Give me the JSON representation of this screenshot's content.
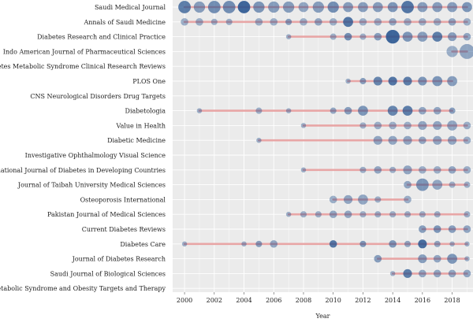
{
  "chart_data": {
    "type": "scatter",
    "xlabel": "Year",
    "x_ticks": [
      2000,
      2002,
      2004,
      2006,
      2008,
      2010,
      2012,
      2014,
      2016,
      2018
    ],
    "xlim": [
      1999.2,
      2019.4
    ],
    "grid": true,
    "colors": {
      "background": "#ebebeb",
      "grid": "#ffffff",
      "range_line": "#e8a6a6",
      "dot_light": "#a9bfd9",
      "dot_dark": "#1f4e8c"
    },
    "journals": [
      {
        "label": "Saudi Medical Journal",
        "range": [
          2000,
          2019
        ],
        "points": [
          [
            2000,
            8,
            0.7
          ],
          [
            2001,
            7,
            0.5
          ],
          [
            2002,
            8,
            0.6
          ],
          [
            2003,
            8,
            0.6
          ],
          [
            2004,
            8,
            0.85
          ],
          [
            2005,
            7,
            0.55
          ],
          [
            2006,
            7,
            0.5
          ],
          [
            2007,
            7,
            0.5
          ],
          [
            2008,
            6,
            0.45
          ],
          [
            2009,
            7,
            0.5
          ],
          [
            2010,
            7,
            0.6
          ],
          [
            2011,
            6,
            0.5
          ],
          [
            2012,
            6,
            0.5
          ],
          [
            2013,
            6,
            0.5
          ],
          [
            2014,
            6,
            0.55
          ],
          [
            2015,
            8,
            0.75
          ],
          [
            2016,
            6,
            0.5
          ],
          [
            2017,
            6,
            0.5
          ],
          [
            2018,
            6,
            0.5
          ],
          [
            2019,
            6,
            0.55
          ]
        ]
      },
      {
        "label": "Annals of Saudi Medicine",
        "range": [
          2000,
          2019
        ],
        "points": [
          [
            2000,
            4,
            0.4
          ],
          [
            2001,
            4,
            0.4
          ],
          [
            2002,
            3,
            0.4
          ],
          [
            2003,
            3,
            0.4
          ],
          [
            2005,
            4,
            0.4
          ],
          [
            2006,
            4,
            0.4
          ],
          [
            2007,
            3,
            0.5
          ],
          [
            2008,
            4,
            0.4
          ],
          [
            2009,
            4,
            0.45
          ],
          [
            2010,
            4,
            0.4
          ],
          [
            2011,
            6,
            0.75
          ],
          [
            2012,
            4,
            0.4
          ],
          [
            2013,
            4,
            0.4
          ],
          [
            2014,
            4,
            0.45
          ],
          [
            2015,
            4,
            0.4
          ],
          [
            2016,
            4,
            0.4
          ],
          [
            2017,
            4,
            0.4
          ],
          [
            2018,
            4,
            0.45
          ],
          [
            2019,
            4,
            0.4
          ]
        ]
      },
      {
        "label": "Diabetes Research and Clinical Practice",
        "range": [
          2007,
          2019
        ],
        "points": [
          [
            2007,
            2,
            0.4
          ],
          [
            2010,
            3,
            0.4
          ],
          [
            2011,
            4,
            0.6
          ],
          [
            2012,
            3,
            0.4
          ],
          [
            2013,
            4,
            0.5
          ],
          [
            2014,
            9,
            0.85
          ],
          [
            2015,
            6,
            0.55
          ],
          [
            2016,
            6,
            0.5
          ],
          [
            2017,
            6,
            0.7
          ],
          [
            2018,
            5,
            0.5
          ],
          [
            2019,
            4,
            0.45
          ]
        ]
      },
      {
        "label": "Indo American Journal of Pharmaceutical Sciences",
        "range": [
          2018,
          2019
        ],
        "points": [
          [
            2018,
            7,
            0.4
          ],
          [
            2019,
            10,
            0.45
          ]
        ]
      },
      {
        "label": "Diabetes Metabolic Syndrome Clinical Research Reviews",
        "range": null,
        "points": []
      },
      {
        "label": "PLOS One",
        "range": [
          2011,
          2018
        ],
        "points": [
          [
            2011,
            2,
            0.4
          ],
          [
            2012,
            3,
            0.5
          ],
          [
            2013,
            5,
            0.65
          ],
          [
            2014,
            5,
            0.75
          ],
          [
            2015,
            5,
            0.7
          ],
          [
            2016,
            5,
            0.55
          ],
          [
            2017,
            6,
            0.55
          ],
          [
            2018,
            6,
            0.5
          ]
        ]
      },
      {
        "label": "CNS Neurological Disorders Drug Targets",
        "range": null,
        "points": []
      },
      {
        "label": "Diabetologia",
        "range": [
          2001,
          2018
        ],
        "points": [
          [
            2001,
            2,
            0.4
          ],
          [
            2005,
            3,
            0.4
          ],
          [
            2007,
            2,
            0.4
          ],
          [
            2010,
            3,
            0.45
          ],
          [
            2011,
            4,
            0.5
          ],
          [
            2012,
            6,
            0.55
          ],
          [
            2014,
            6,
            0.65
          ],
          [
            2015,
            6,
            0.7
          ],
          [
            2016,
            4,
            0.45
          ],
          [
            2017,
            4,
            0.45
          ],
          [
            2018,
            3,
            0.5
          ]
        ]
      },
      {
        "label": "Value in Health",
        "range": [
          2008,
          2019
        ],
        "points": [
          [
            2008,
            2,
            0.4
          ],
          [
            2012,
            3,
            0.4
          ],
          [
            2013,
            4,
            0.4
          ],
          [
            2014,
            4,
            0.4
          ],
          [
            2015,
            4,
            0.4
          ],
          [
            2016,
            5,
            0.45
          ],
          [
            2017,
            5,
            0.45
          ],
          [
            2018,
            6,
            0.45
          ],
          [
            2019,
            4,
            0.4
          ]
        ]
      },
      {
        "label": "Diabetic Medicine",
        "range": [
          2005,
          2019
        ],
        "points": [
          [
            2005,
            2,
            0.4
          ],
          [
            2013,
            5,
            0.45
          ],
          [
            2014,
            5,
            0.45
          ],
          [
            2015,
            5,
            0.45
          ],
          [
            2016,
            4,
            0.45
          ],
          [
            2017,
            5,
            0.45
          ],
          [
            2018,
            5,
            0.45
          ],
          [
            2019,
            4,
            0.4
          ]
        ]
      },
      {
        "label": "Investigative Ophthalmology Visual Science",
        "range": null,
        "points": []
      },
      {
        "label": "International Journal of Diabetes in Developing Countries",
        "range": [
          2008,
          2019
        ],
        "points": [
          [
            2008,
            2,
            0.4
          ],
          [
            2012,
            3,
            0.4
          ],
          [
            2013,
            4,
            0.45
          ],
          [
            2014,
            3,
            0.4
          ],
          [
            2015,
            5,
            0.45
          ],
          [
            2016,
            4,
            0.4
          ],
          [
            2017,
            4,
            0.4
          ],
          [
            2018,
            4,
            0.45
          ],
          [
            2019,
            4,
            0.4
          ]
        ]
      },
      {
        "label": "Journal of Taibah University Medical Sciences",
        "range": [
          2015,
          2019
        ],
        "points": [
          [
            2015,
            4,
            0.45
          ],
          [
            2016,
            8,
            0.55
          ],
          [
            2017,
            6,
            0.45
          ],
          [
            2018,
            3,
            0.4
          ],
          [
            2019,
            3,
            0.4
          ]
        ]
      },
      {
        "label": "Osteoporosis International",
        "range": [
          2010,
          2015
        ],
        "points": [
          [
            2010,
            4,
            0.4
          ],
          [
            2011,
            5,
            0.45
          ],
          [
            2012,
            6,
            0.45
          ],
          [
            2013,
            3,
            0.4
          ],
          [
            2015,
            4,
            0.4
          ]
        ]
      },
      {
        "label": "Pakistan Journal of Medical Sciences",
        "range": [
          2007,
          2019
        ],
        "points": [
          [
            2007,
            2,
            0.4
          ],
          [
            2008,
            3,
            0.4
          ],
          [
            2009,
            3,
            0.4
          ],
          [
            2010,
            4,
            0.45
          ],
          [
            2011,
            4,
            0.45
          ],
          [
            2012,
            3,
            0.4
          ],
          [
            2013,
            3,
            0.4
          ],
          [
            2014,
            3,
            0.4
          ],
          [
            2015,
            3,
            0.4
          ],
          [
            2016,
            3,
            0.4
          ],
          [
            2017,
            3,
            0.4
          ],
          [
            2019,
            3,
            0.4
          ]
        ]
      },
      {
        "label": "Current Diabetes Reviews",
        "range": [
          2016,
          2019
        ],
        "points": [
          [
            2016,
            4,
            0.5
          ],
          [
            2017,
            4,
            0.55
          ],
          [
            2018,
            4,
            0.5
          ],
          [
            2019,
            4,
            0.45
          ]
        ]
      },
      {
        "label": "Diabetes Care",
        "range": [
          2000,
          2019
        ],
        "points": [
          [
            2000,
            2,
            0.4
          ],
          [
            2004,
            2,
            0.4
          ],
          [
            2005,
            3,
            0.5
          ],
          [
            2006,
            4,
            0.45
          ],
          [
            2010,
            4,
            0.75
          ],
          [
            2012,
            3,
            0.55
          ],
          [
            2014,
            4,
            0.55
          ],
          [
            2015,
            3,
            0.45
          ],
          [
            2016,
            5,
            0.8
          ],
          [
            2017,
            3,
            0.45
          ],
          [
            2018,
            2,
            0.4
          ],
          [
            2019,
            2,
            0.4
          ]
        ]
      },
      {
        "label": "Journal of Diabetes Research",
        "range": [
          2013,
          2019
        ],
        "points": [
          [
            2013,
            4,
            0.5
          ],
          [
            2016,
            5,
            0.5
          ],
          [
            2017,
            4,
            0.45
          ],
          [
            2018,
            6,
            0.55
          ],
          [
            2019,
            2,
            0.4
          ]
        ]
      },
      {
        "label": "Saudi Journal of Biological Sciences",
        "range": [
          2014,
          2019
        ],
        "points": [
          [
            2014,
            2,
            0.4
          ],
          [
            2015,
            5,
            0.7
          ],
          [
            2016,
            4,
            0.45
          ],
          [
            2017,
            4,
            0.45
          ],
          [
            2018,
            4,
            0.45
          ],
          [
            2019,
            4,
            0.45
          ]
        ]
      },
      {
        "label": "Diabetes Metabolic Syndrome and Obesity Targets and Therapy",
        "range": null,
        "points": []
      }
    ]
  }
}
